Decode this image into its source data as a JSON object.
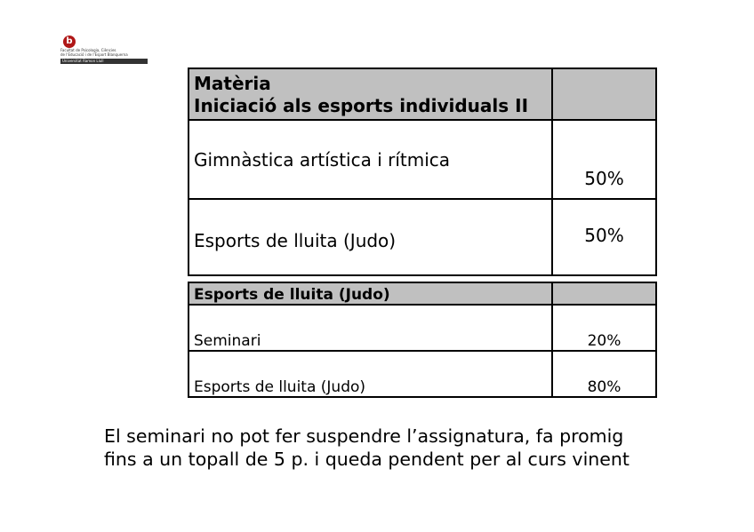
{
  "logo": {
    "mark": "b",
    "line1": "Facultat de Psicologia, Ciències",
    "line2": "de l'Educació i de l'Esport Blanquerna",
    "bar": "Universitat Ramon Llull"
  },
  "table1": {
    "header": {
      "title_line1": "Matèria",
      "title_line2": "Iniciació als esports individuals II",
      "value": ""
    },
    "rows": [
      {
        "label": "Gimnàstica artística i rítmica",
        "value": "50%"
      },
      {
        "label": "Esports de lluita (Judo)",
        "value": "50%"
      }
    ]
  },
  "table2": {
    "header": {
      "title": "Esports de lluita (Judo)",
      "value": ""
    },
    "rows": [
      {
        "label": "Seminari",
        "value": "20%"
      },
      {
        "label": "Esports de lluita (Judo)",
        "value": "80%"
      }
    ]
  },
  "note": "El seminari no pot fer suspendre l’assignatura, fa promig fins a un topall de 5 p. i queda pendent per al curs vinent"
}
